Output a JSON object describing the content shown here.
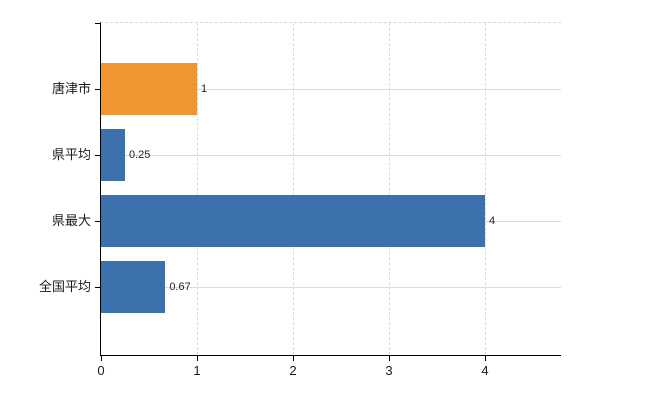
{
  "chart_data": {
    "type": "bar",
    "orientation": "horizontal",
    "title": "",
    "xlabel": "",
    "ylabel": "",
    "categories": [
      "唐津市",
      "県平均",
      "県最大",
      "全国平均"
    ],
    "values": [
      1,
      0.25,
      4,
      0.67
    ],
    "value_labels": [
      "1",
      "0.25",
      "4",
      "0.67"
    ],
    "bar_colors": [
      "#ef9532",
      "#3c71ad",
      "#3c71ad",
      "#3c71ad"
    ],
    "xlim": [
      0,
      4.8
    ],
    "x_ticks": [
      0,
      1,
      2,
      3,
      4
    ],
    "x_tick_labels": [
      "0",
      "1",
      "2",
      "3",
      "4"
    ],
    "grid": true,
    "legend": false
  },
  "colors": {
    "bar_orange": "#ef9532",
    "bar_blue": "#3c71ad",
    "axis": "#000000",
    "grid_horizontal": "#d6ded6",
    "grid_vertical": "#d9d9df",
    "text": "#1a1a1a",
    "background": "#ffffff"
  }
}
